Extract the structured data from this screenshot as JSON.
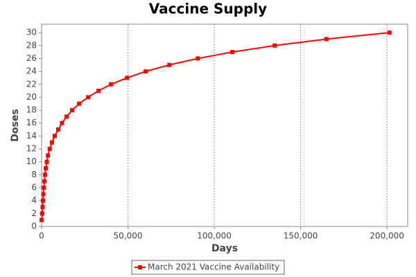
{
  "chart_data": {
    "type": "line",
    "title": "Vaccine Supply",
    "x_label": "Days",
    "y_label": "Doses",
    "x": [
      0,
      400,
      600,
      800,
      1000,
      1300,
      1600,
      2000,
      2400,
      3000,
      3700,
      4700,
      6000,
      7600,
      9600,
      11800,
      14500,
      17700,
      21700,
      27000,
      33000,
      40200,
      49500,
      60300,
      74000,
      90500,
      110500,
      135000,
      165000,
      201500
    ],
    "series": [
      {
        "name": "March 2021 Vaccine Availability",
        "color": "#ff0000",
        "values": [
          1,
          2,
          3,
          4,
          5,
          6,
          7,
          8,
          9,
          10,
          11,
          12,
          13,
          14,
          15,
          16,
          17,
          18,
          19,
          20,
          21,
          22,
          23,
          24,
          25,
          26,
          27,
          28,
          29,
          30
        ]
      }
    ],
    "xlim": [
      0,
      212000
    ],
    "xticks": [
      0,
      {
        "value": 50000,
        "label": "50,000"
      },
      {
        "value": 100000,
        "label": "100,000"
      },
      {
        "value": 150000,
        "label": "150,000"
      },
      {
        "value": 200000,
        "label": "200,000"
      }
    ],
    "ylim": [
      0,
      31.3
    ],
    "yticks": [
      0,
      2,
      4,
      6,
      8,
      10,
      12,
      14,
      16,
      18,
      20,
      22,
      24,
      26,
      28,
      30
    ],
    "grid": "x",
    "legend": "bottom"
  }
}
